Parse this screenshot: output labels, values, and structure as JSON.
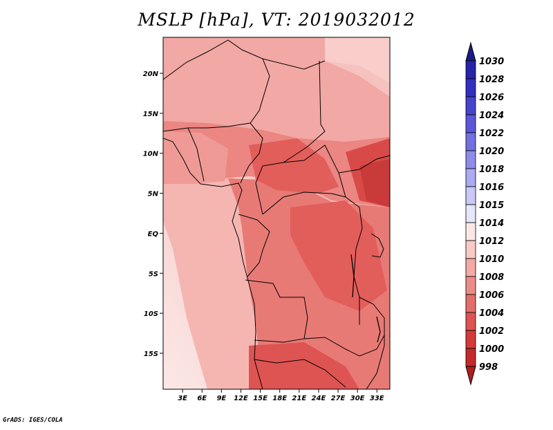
{
  "title": "MSLP [hPa], VT: 2019032012",
  "footer": "GrADS: IGES/COLA",
  "lat_ticks": [
    {
      "label": "20N",
      "lat": 20
    },
    {
      "label": "15N",
      "lat": 15
    },
    {
      "label": "10N",
      "lat": 10
    },
    {
      "label": "5N",
      "lat": 5
    },
    {
      "label": "EQ",
      "lat": 0
    },
    {
      "label": "5S",
      "lat": -5
    },
    {
      "label": "10S",
      "lat": -10
    },
    {
      "label": "15S",
      "lat": -15
    }
  ],
  "lon_ticks": [
    {
      "label": "3E",
      "lon": 3
    },
    {
      "label": "6E",
      "lon": 6
    },
    {
      "label": "9E",
      "lon": 9
    },
    {
      "label": "12E",
      "lon": 12
    },
    {
      "label": "15E",
      "lon": 15
    },
    {
      "label": "18E",
      "lon": 18
    },
    {
      "label": "21E",
      "lon": 21
    },
    {
      "label": "24E",
      "lon": 24
    },
    {
      "label": "27E",
      "lon": 27
    },
    {
      "label": "30E",
      "lon": 30
    },
    {
      "label": "33E",
      "lon": 33
    }
  ],
  "colorbar": {
    "labels": [
      "1030",
      "1028",
      "1026",
      "1024",
      "1022",
      "1020",
      "1018",
      "1016",
      "1015",
      "1014",
      "1012",
      "1010",
      "1008",
      "1006",
      "1004",
      "1002",
      "1000",
      "998"
    ],
    "colors": [
      "#1c1a86",
      "#2624a8",
      "#3230c0",
      "#4644cc",
      "#5a58d8",
      "#7270e0",
      "#8e8ce8",
      "#acaaf0",
      "#cac8f4",
      "#e6e6fa",
      "#fbe8e6",
      "#f8cac6",
      "#f3aaa6",
      "#ec8c88",
      "#e46e6c",
      "#de5452",
      "#d43a3a",
      "#c42a2a",
      "#b01e1e"
    ],
    "top_arrow_color": "#1c1a86",
    "bottom_arrow_color": "#b01e1e"
  },
  "map": {
    "lon_range": [
      0,
      35
    ],
    "lat_range": [
      -19.5,
      24.5
    ],
    "ocean_gradient": [
      "#fbe8e6",
      "#f5c2bf"
    ],
    "land_base_color": "#ec8c88"
  }
}
